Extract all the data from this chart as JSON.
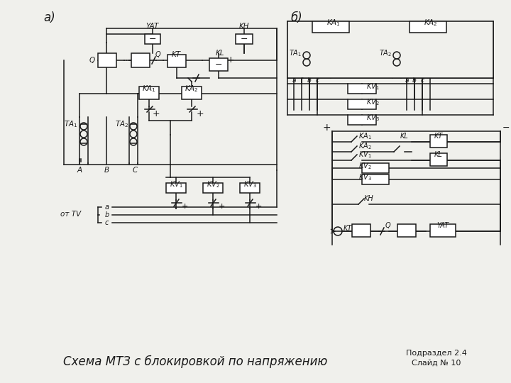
{
  "title": "Схема МТЗ с блокировкой по напряжению",
  "subtitle1": "Подраздел 2.4",
  "subtitle2": "Слайд № 10",
  "label_a": "а)",
  "label_b": "б)",
  "bg_color": "#f0f0ec",
  "line_color": "#1a1a1a"
}
